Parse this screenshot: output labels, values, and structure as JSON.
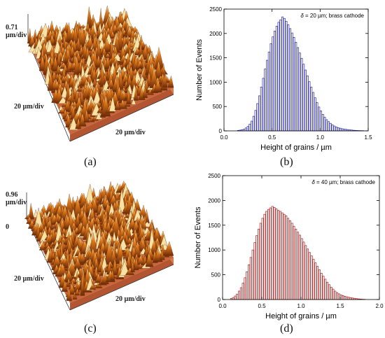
{
  "panels": {
    "a": {
      "label": "(a)",
      "z_scale": "0.71",
      "z_unit": "µm/div",
      "y_scale": "20 µm/div",
      "x_scale": "20 µm/div"
    },
    "b": {
      "label": "(b)"
    },
    "c": {
      "label": "(c)",
      "z_scale": "0.96",
      "z_unit": "µm/div",
      "z_zero": "0",
      "y_scale": "20 µm/div",
      "x_scale": "20 µm/div"
    },
    "d": {
      "label": "(d)"
    }
  },
  "colors": {
    "afm_base": "#c8663a",
    "afm_peak": "#f7e2a4",
    "afm_mid": "#e07a1a",
    "afm_dark": "#6b2a08"
  },
  "chart_data": [
    {
      "type": "bar",
      "panel": "b",
      "annotation_symbol": "δ",
      "annotation_text": " = 20 µm; brass cathode",
      "xlabel": "Height of grains / µm",
      "ylabel": "Number of Events",
      "xlim": [
        0,
        1.5
      ],
      "ylim": [
        0,
        2500
      ],
      "xticks": [
        "0.0",
        "0.5",
        "1.0",
        "1.5"
      ],
      "yticks": [
        "0",
        "500",
        "1000",
        "1500",
        "2000",
        "2500"
      ],
      "bar_color": "#2b2bb0",
      "bin_width": 0.02,
      "bin_centers": [
        0.15,
        0.17,
        0.19,
        0.21,
        0.23,
        0.25,
        0.27,
        0.29,
        0.31,
        0.33,
        0.35,
        0.37,
        0.39,
        0.41,
        0.43,
        0.45,
        0.47,
        0.49,
        0.51,
        0.53,
        0.55,
        0.57,
        0.59,
        0.61,
        0.63,
        0.65,
        0.67,
        0.69,
        0.71,
        0.73,
        0.75,
        0.77,
        0.79,
        0.81,
        0.83,
        0.85,
        0.87,
        0.89,
        0.91,
        0.93,
        0.95,
        0.97,
        0.99,
        1.01,
        1.03,
        1.05,
        1.07,
        1.09,
        1.11,
        1.13,
        1.15,
        1.17,
        1.19,
        1.21,
        1.23,
        1.25,
        1.27,
        1.29,
        1.31,
        1.33,
        1.35,
        1.37,
        1.39,
        1.41,
        1.43,
        1.45
      ],
      "values": [
        10,
        15,
        25,
        35,
        60,
        90,
        140,
        200,
        300,
        420,
        560,
        720,
        900,
        1080,
        1270,
        1450,
        1620,
        1790,
        1930,
        2050,
        2150,
        2230,
        2280,
        2340,
        2310,
        2250,
        2180,
        2100,
        2010,
        1920,
        1820,
        1710,
        1600,
        1490,
        1370,
        1250,
        1130,
        1010,
        900,
        790,
        680,
        580,
        490,
        410,
        340,
        280,
        230,
        190,
        155,
        125,
        100,
        80,
        65,
        55,
        45,
        38,
        32,
        26,
        21,
        17,
        13,
        10,
        8,
        6,
        5,
        4
      ]
    },
    {
      "type": "bar",
      "panel": "d",
      "annotation_symbol": "δ",
      "annotation_text": " = 40 µm; brass cathode",
      "xlabel": "Height of grains / µm",
      "ylabel": "Number of Events",
      "xlim": [
        0,
        2.0
      ],
      "ylim": [
        0,
        2500
      ],
      "xticks": [
        "0.0",
        "0.5",
        "1.0",
        "1.5",
        "2.0"
      ],
      "yticks": [
        "0",
        "500",
        "1000",
        "1500",
        "2000",
        "2500"
      ],
      "bar_color": "#b02020",
      "bin_width": 0.025,
      "bin_centers": [
        0.1125,
        0.1375,
        0.1625,
        0.1875,
        0.2125,
        0.2375,
        0.2625,
        0.2875,
        0.3125,
        0.3375,
        0.3625,
        0.3875,
        0.4125,
        0.4375,
        0.4625,
        0.4875,
        0.5125,
        0.5375,
        0.5625,
        0.5875,
        0.6125,
        0.6375,
        0.6625,
        0.6875,
        0.7125,
        0.7375,
        0.7625,
        0.7875,
        0.8125,
        0.8375,
        0.8625,
        0.8875,
        0.9125,
        0.9375,
        0.9625,
        0.9875,
        1.0125,
        1.0375,
        1.0625,
        1.0875,
        1.1125,
        1.1375,
        1.1625,
        1.1875,
        1.2125,
        1.2375,
        1.2625,
        1.2875,
        1.3125,
        1.3375,
        1.3625,
        1.3875,
        1.4125,
        1.4375,
        1.4625,
        1.4875,
        1.5125,
        1.5375,
        1.5625,
        1.5875,
        1.6125,
        1.6375,
        1.6625,
        1.6875,
        1.7125,
        1.7375,
        1.7625,
        1.7875,
        1.8125
      ],
      "values": [
        20,
        40,
        70,
        110,
        170,
        240,
        330,
        440,
        560,
        700,
        850,
        1000,
        1150,
        1290,
        1420,
        1540,
        1640,
        1720,
        1780,
        1820,
        1850,
        1880,
        1860,
        1830,
        1800,
        1780,
        1750,
        1720,
        1690,
        1640,
        1590,
        1540,
        1480,
        1420,
        1360,
        1300,
        1230,
        1160,
        1090,
        1020,
        950,
        880,
        810,
        740,
        670,
        600,
        530,
        470,
        410,
        350,
        300,
        250,
        210,
        170,
        140,
        115,
        95,
        80,
        65,
        55,
        45,
        38,
        30,
        24,
        18,
        13,
        9,
        6,
        4
      ]
    }
  ]
}
